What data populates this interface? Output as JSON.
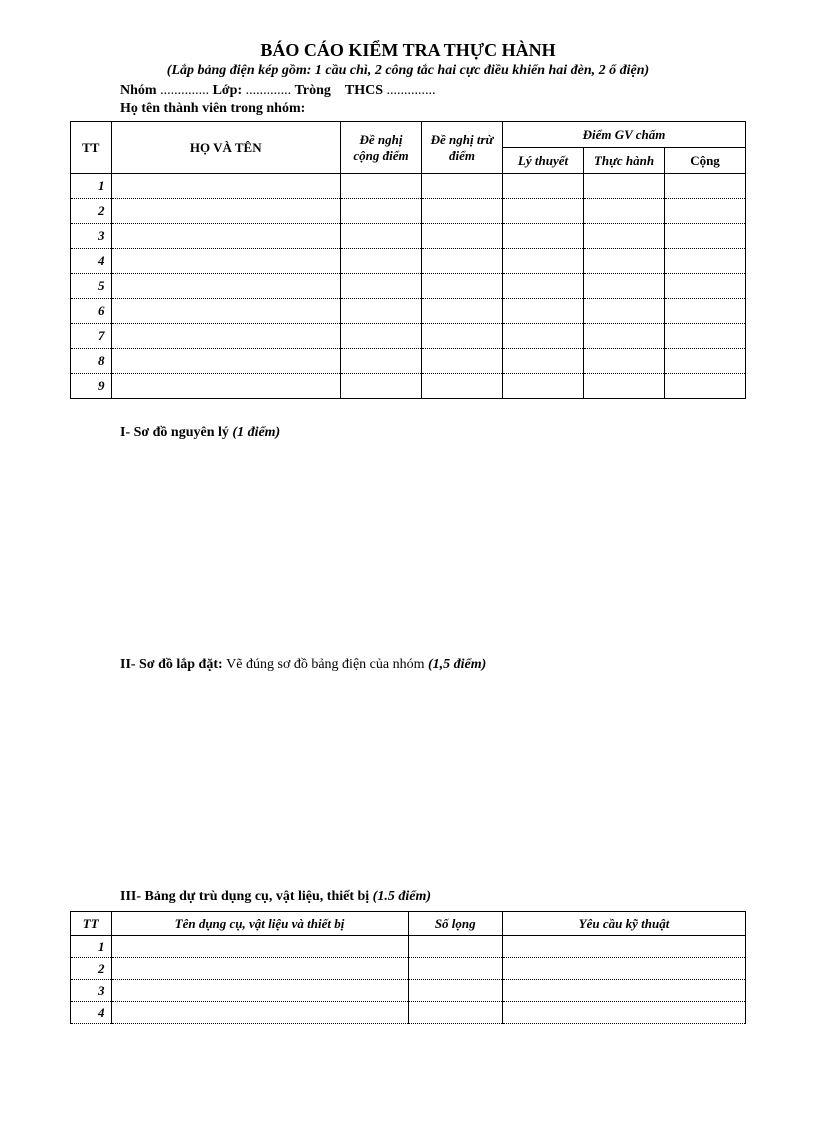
{
  "header": {
    "title": "BÁO CÁO KIỂM TRA THỰC HÀNH",
    "subtitle": "(Lắp bảng điện kép gồm: 1 cầu chì, 2 công tắc hai cực điều khiển hai đèn, 2 ổ điện)",
    "info_nhom_label": "Nhóm",
    "info_lop_label": "Lớp:",
    "info_trong_label": "Tròng",
    "info_thcs_label": "THCS",
    "members_label": "Họ tên thành viên trong nhóm:"
  },
  "table1": {
    "col_tt": "TT",
    "col_name": "HỌ VÀ TÊN",
    "col_add": "Đề nghị cộng điểm",
    "col_sub": "Đề nghị trừ điểm",
    "col_score_header": "Điểm GV chấm",
    "col_ly": "Lý thuyết",
    "col_th": "Thực hành",
    "col_cong": "Cộng",
    "rows": [
      "1",
      "2",
      "3",
      "4",
      "5",
      "6",
      "7",
      "8",
      "9"
    ],
    "widths_pct": [
      6,
      34,
      12,
      12,
      12,
      12,
      12
    ]
  },
  "section1": {
    "bold": "I- Sơ đồ nguyên lý ",
    "italic": "(1 điểm)"
  },
  "section2": {
    "bold": "II- Sơ đồ lắp đặt: ",
    "normal": "Vẽ đúng sơ đồ bảng điện của nhóm  ",
    "italic": "(1,5 điểm)"
  },
  "section3": {
    "bold": "III- Bảng dự trù dụng cụ, vật liệu, thiết bị ",
    "italic": "(1.5 điểm)"
  },
  "table2": {
    "col_tt": "TT",
    "col_name": "Tên dụng cụ, vật liệu và thiết bị",
    "col_qty": "Số lọng",
    "col_req": "Yêu cầu kỹ thuật",
    "rows": [
      "1",
      "2",
      "3",
      "4"
    ],
    "widths_pct": [
      6,
      44,
      14,
      36
    ]
  },
  "style": {
    "background_color": "#ffffff",
    "text_color": "#000000",
    "font_family": "Times New Roman",
    "title_fontsize": 18,
    "body_fontsize": 14,
    "table_fontsize": 13,
    "border_color": "#000000",
    "dotted_row_separator": true
  }
}
